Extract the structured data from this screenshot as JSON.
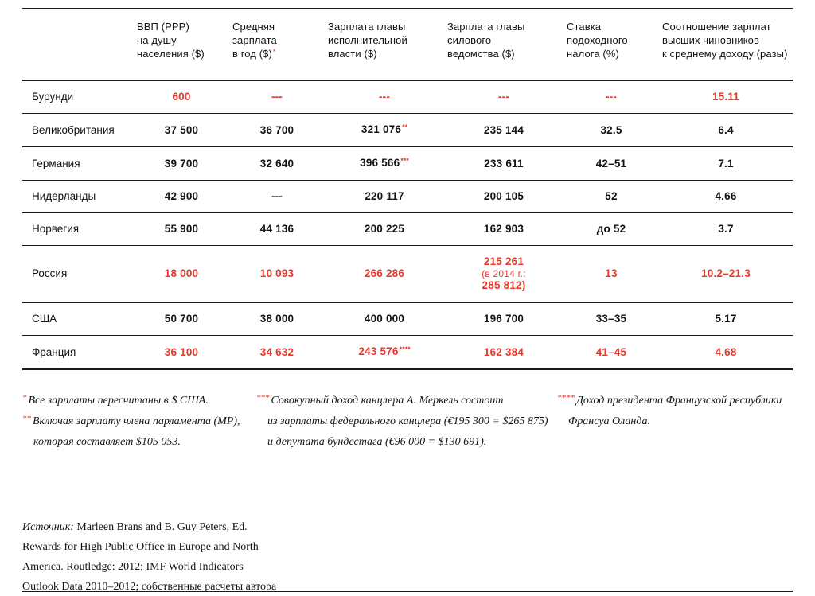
{
  "colors": {
    "accent": "#e8372a",
    "text": "#131313"
  },
  "table": {
    "headers": [
      {
        "text": "",
        "sup": ""
      },
      {
        "text": "ВВП (PPP)\nна душу\nнаселения ($)",
        "sup": ""
      },
      {
        "text": "Средняя\nзарплата\nв год ($)",
        "sup": "*"
      },
      {
        "text": "Зарплата главы\nисполнительной\nвласти ($)",
        "sup": ""
      },
      {
        "text": "Зарплата главы\nсилового\nведомства ($)",
        "sup": ""
      },
      {
        "text": "Ставка\nподоходного\nналога (%)",
        "sup": ""
      },
      {
        "text": "Соотношение зарплат\nвысших чиновников\nк среднему доходу (разы)",
        "sup": ""
      }
    ],
    "rows": [
      {
        "country": "Бурунди",
        "thick": false,
        "cells": [
          {
            "v": "600",
            "red": true
          },
          {
            "v": "---",
            "red": true
          },
          {
            "v": "---",
            "red": true
          },
          {
            "v": "---",
            "red": true
          },
          {
            "v": "---",
            "red": true
          },
          {
            "v": "15.11",
            "red": true
          }
        ]
      },
      {
        "country": "Великобритания",
        "thick": false,
        "cells": [
          {
            "v": "37 500"
          },
          {
            "v": "36 700"
          },
          {
            "v": "321 076",
            "sup": "**"
          },
          {
            "v": "235 144"
          },
          {
            "v": "32.5"
          },
          {
            "v": "6.4"
          }
        ]
      },
      {
        "country": "Германия",
        "thick": false,
        "cells": [
          {
            "v": "39 700"
          },
          {
            "v": "32 640"
          },
          {
            "v": "396 566",
            "sup": "***"
          },
          {
            "v": "233 611"
          },
          {
            "v": "42–51"
          },
          {
            "v": "7.1"
          }
        ]
      },
      {
        "country": "Нидерланды",
        "thick": false,
        "cells": [
          {
            "v": "42 900"
          },
          {
            "v": "---"
          },
          {
            "v": "220 117"
          },
          {
            "v": "200 105"
          },
          {
            "v": "52"
          },
          {
            "v": "4.66"
          }
        ]
      },
      {
        "country": "Норвегия",
        "thick": false,
        "cells": [
          {
            "v": "55 900"
          },
          {
            "v": "44 136"
          },
          {
            "v": "200 225"
          },
          {
            "v": "162 903"
          },
          {
            "v": "до 52"
          },
          {
            "v": "3.7"
          }
        ]
      },
      {
        "country": "Россия",
        "thick": true,
        "cells": [
          {
            "v": "18 000",
            "red": true
          },
          {
            "v": "10 093",
            "red": true
          },
          {
            "v": "266 286",
            "red": true
          },
          {
            "red": true,
            "lines": [
              {
                "t": "215 261",
                "b": 1
              },
              {
                "t": "(в 2014 г.:",
                "b": 0
              },
              {
                "t": "285 812)",
                "b": 1
              }
            ]
          },
          {
            "v": "13",
            "red": true
          },
          {
            "v": "10.2–21.3",
            "red": true
          }
        ]
      },
      {
        "country": "США",
        "thick": false,
        "cells": [
          {
            "v": "50 700"
          },
          {
            "v": "38 000"
          },
          {
            "v": "400 000"
          },
          {
            "v": "196 700"
          },
          {
            "v": "33–35"
          },
          {
            "v": "5.17"
          }
        ]
      },
      {
        "country": "Франция",
        "thick": true,
        "cells": [
          {
            "v": "36 100",
            "red": true
          },
          {
            "v": "34 632",
            "red": true
          },
          {
            "v": "243 576",
            "red": true,
            "sup": "****"
          },
          {
            "v": "162 384",
            "red": true
          },
          {
            "v": "41–45",
            "red": true
          },
          {
            "v": "4.68",
            "red": true
          }
        ]
      }
    ]
  },
  "footnotes": {
    "col1": [
      {
        "sup": "*",
        "lines": [
          "Все зарплаты пересчитаны в $ США."
        ]
      },
      {
        "sup": "**",
        "lines": [
          "Включая зарплату члена парламента (MP),",
          "которая составляет $105 053."
        ]
      }
    ],
    "col2": [
      {
        "sup": "***",
        "lines": [
          "Совокупный доход канцлера А. Меркель состоит",
          "из зарплаты федерального канцлера (€195 300 = $265 875)",
          "и депутата бундестага (€96 000 = $130 691)."
        ]
      }
    ],
    "col3": [
      {
        "sup": "****",
        "lines": [
          "Доход президента Французской республики",
          "Франсуа Оланда."
        ]
      }
    ]
  },
  "source": {
    "label": "Источник:",
    "lines": [
      "Marleen Brans and B. Guy Peters, Ed.",
      "Rewards for High Public Office in Europe and North",
      "America. Routledge: 2012; IMF World Indicators",
      "Outlook Data 2010–2012; собственные расчеты автора"
    ]
  },
  "chart_data": {
    "type": "table",
    "columns": [
      "Страна",
      "ВВП (PPP) на душу населения ($)",
      "Средняя зарплата в год ($)*",
      "Зарплата главы исполнительной власти ($)",
      "Зарплата главы силового ведомства ($)",
      "Ставка подоходного налога (%)",
      "Соотношение зарплат высших чиновников к среднему доходу (разы)"
    ],
    "rows": [
      [
        "Бурунди",
        "600",
        "---",
        "---",
        "---",
        "---",
        "15.11"
      ],
      [
        "Великобритания",
        "37 500",
        "36 700",
        "321 076**",
        "235 144",
        "32.5",
        "6.4"
      ],
      [
        "Германия",
        "39 700",
        "32 640",
        "396 566***",
        "233 611",
        "42–51",
        "7.1"
      ],
      [
        "Нидерланды",
        "42 900",
        "---",
        "220 117",
        "200 105",
        "52",
        "4.66"
      ],
      [
        "Норвегия",
        "55 900",
        "44 136",
        "200 225",
        "162 903",
        "до 52",
        "3.7"
      ],
      [
        "Россия",
        "18 000",
        "10 093",
        "266 286",
        "215 261 (в 2014 г.: 285 812)",
        "13",
        "10.2–21.3"
      ],
      [
        "США",
        "50 700",
        "38 000",
        "400 000",
        "196 700",
        "33–35",
        "5.17"
      ],
      [
        "Франция",
        "36 100",
        "34 632",
        "243 576****",
        "162 384",
        "41–45",
        "4.68"
      ]
    ],
    "highlighted_rows_red": [
      "Бурунди",
      "Россия",
      "Франция"
    ],
    "title": "",
    "legend_position": "none",
    "grid": "horizontal-rules"
  }
}
